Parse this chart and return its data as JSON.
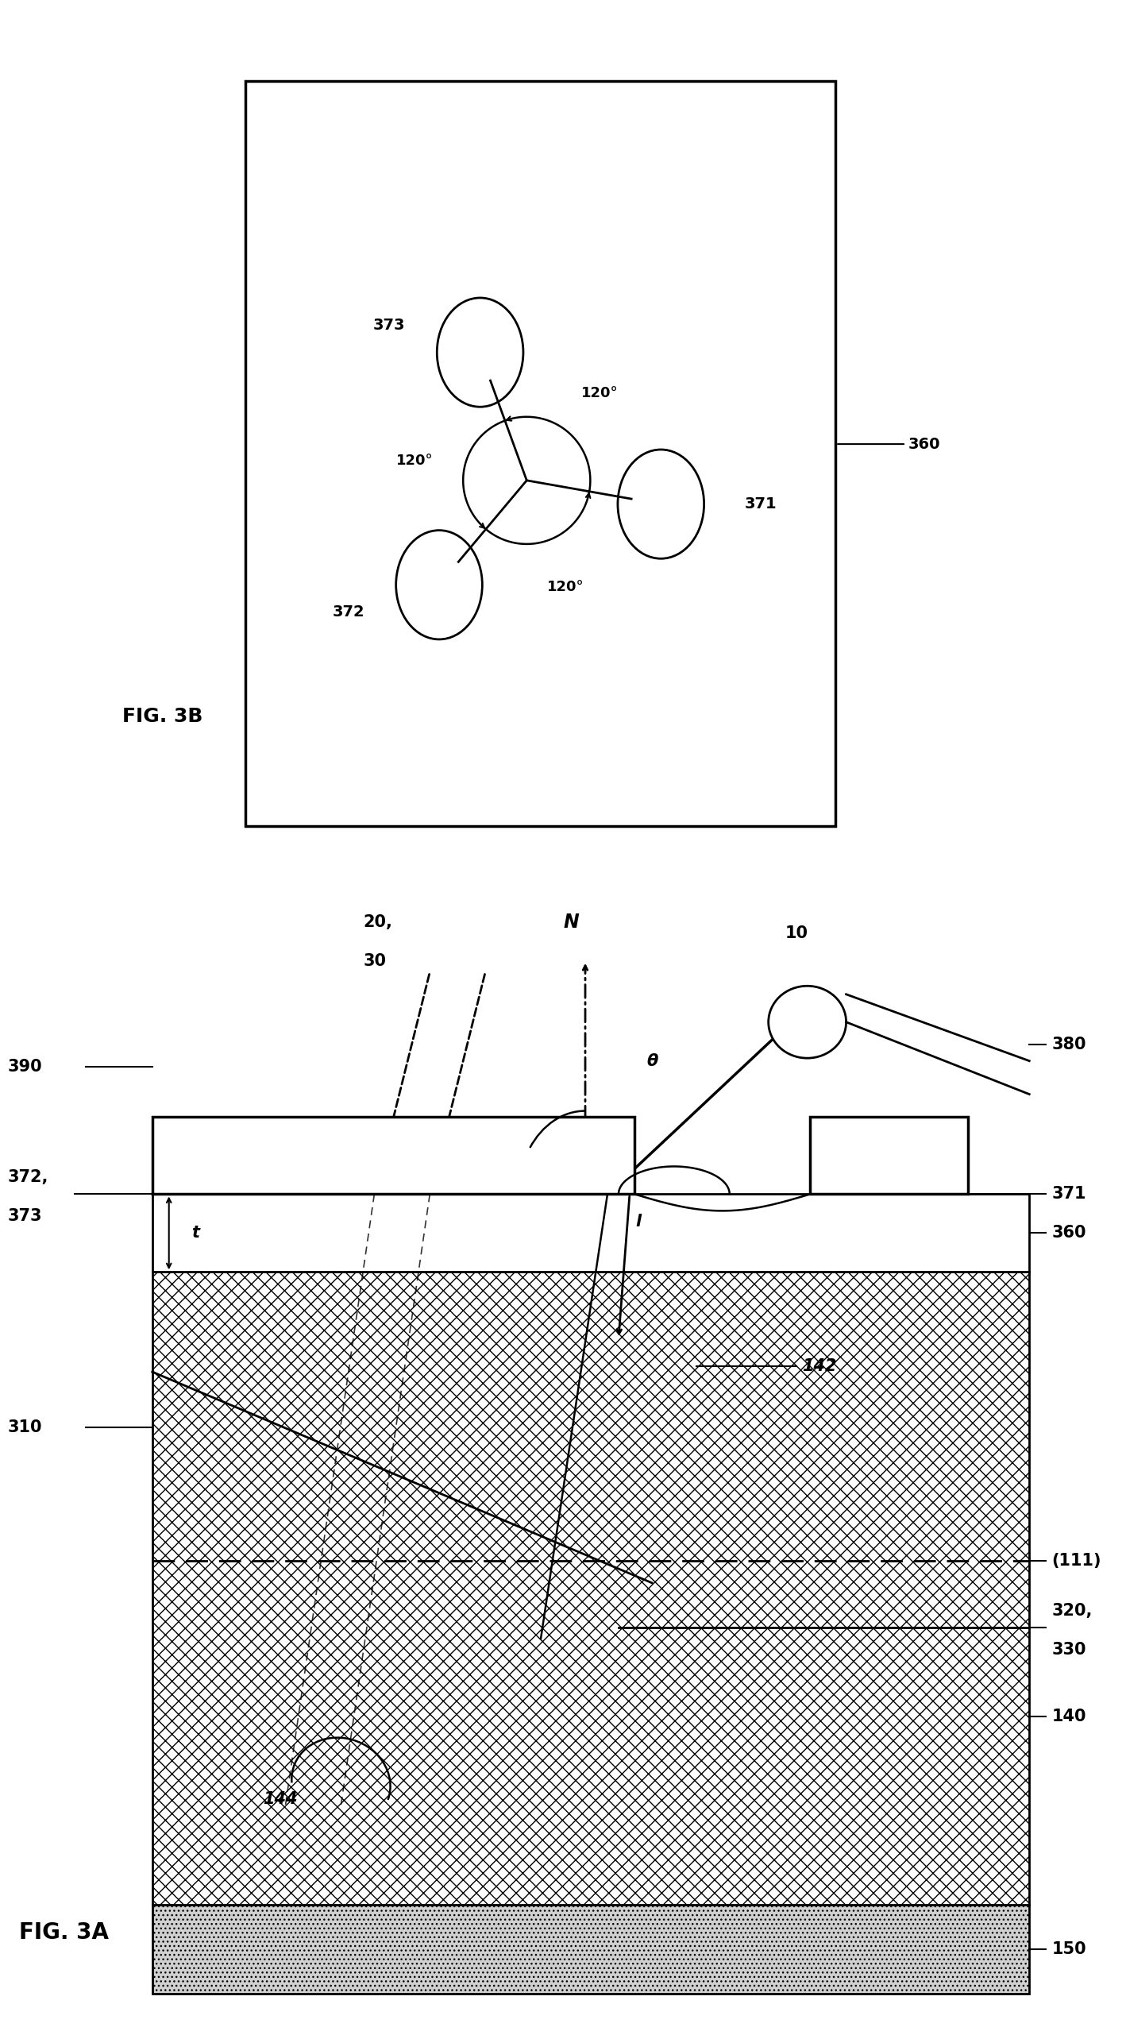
{
  "fig_width": 19.91,
  "fig_height": 25.42,
  "bg_color": "#ffffff"
}
